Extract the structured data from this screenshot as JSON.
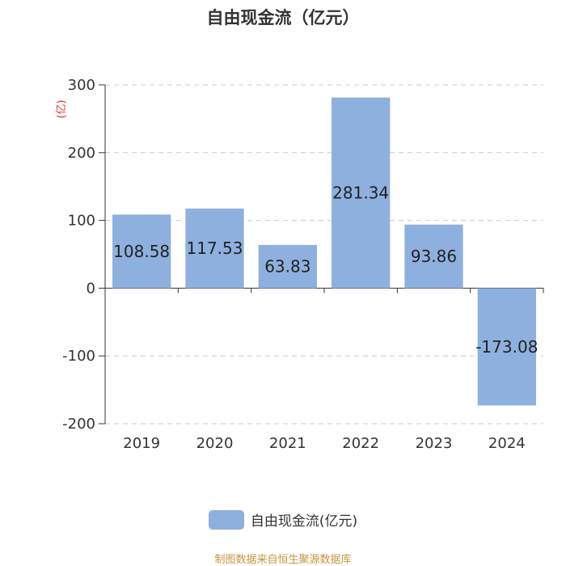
{
  "title": "自由现金流（亿元）",
  "source": "制图数据来自恒生聚源数据库",
  "legend": {
    "label": "自由现金流(亿元)"
  },
  "colors": {
    "bar": "#8eb0de",
    "axis_unit": "#e03030",
    "source": "#c9933a"
  },
  "chart_data": {
    "type": "bar",
    "title": "自由现金流（亿元）",
    "ylabel": "(亿)",
    "xlabel": "",
    "categories": [
      "2019",
      "2020",
      "2021",
      "2022",
      "2023",
      "2024"
    ],
    "series": [
      {
        "name": "自由现金流(亿元)",
        "values": [
          108.58,
          117.53,
          63.83,
          281.34,
          93.86,
          -173.08
        ],
        "labels": [
          "108.58",
          "117.53",
          "63.83",
          "281.34",
          "93.86",
          "-173.08"
        ]
      }
    ],
    "ylim": [
      -200,
      300
    ],
    "yticks": [
      "300",
      "200",
      "100",
      "0",
      "-100",
      "-200"
    ],
    "grid": true,
    "legend_position": "bottom-center"
  }
}
